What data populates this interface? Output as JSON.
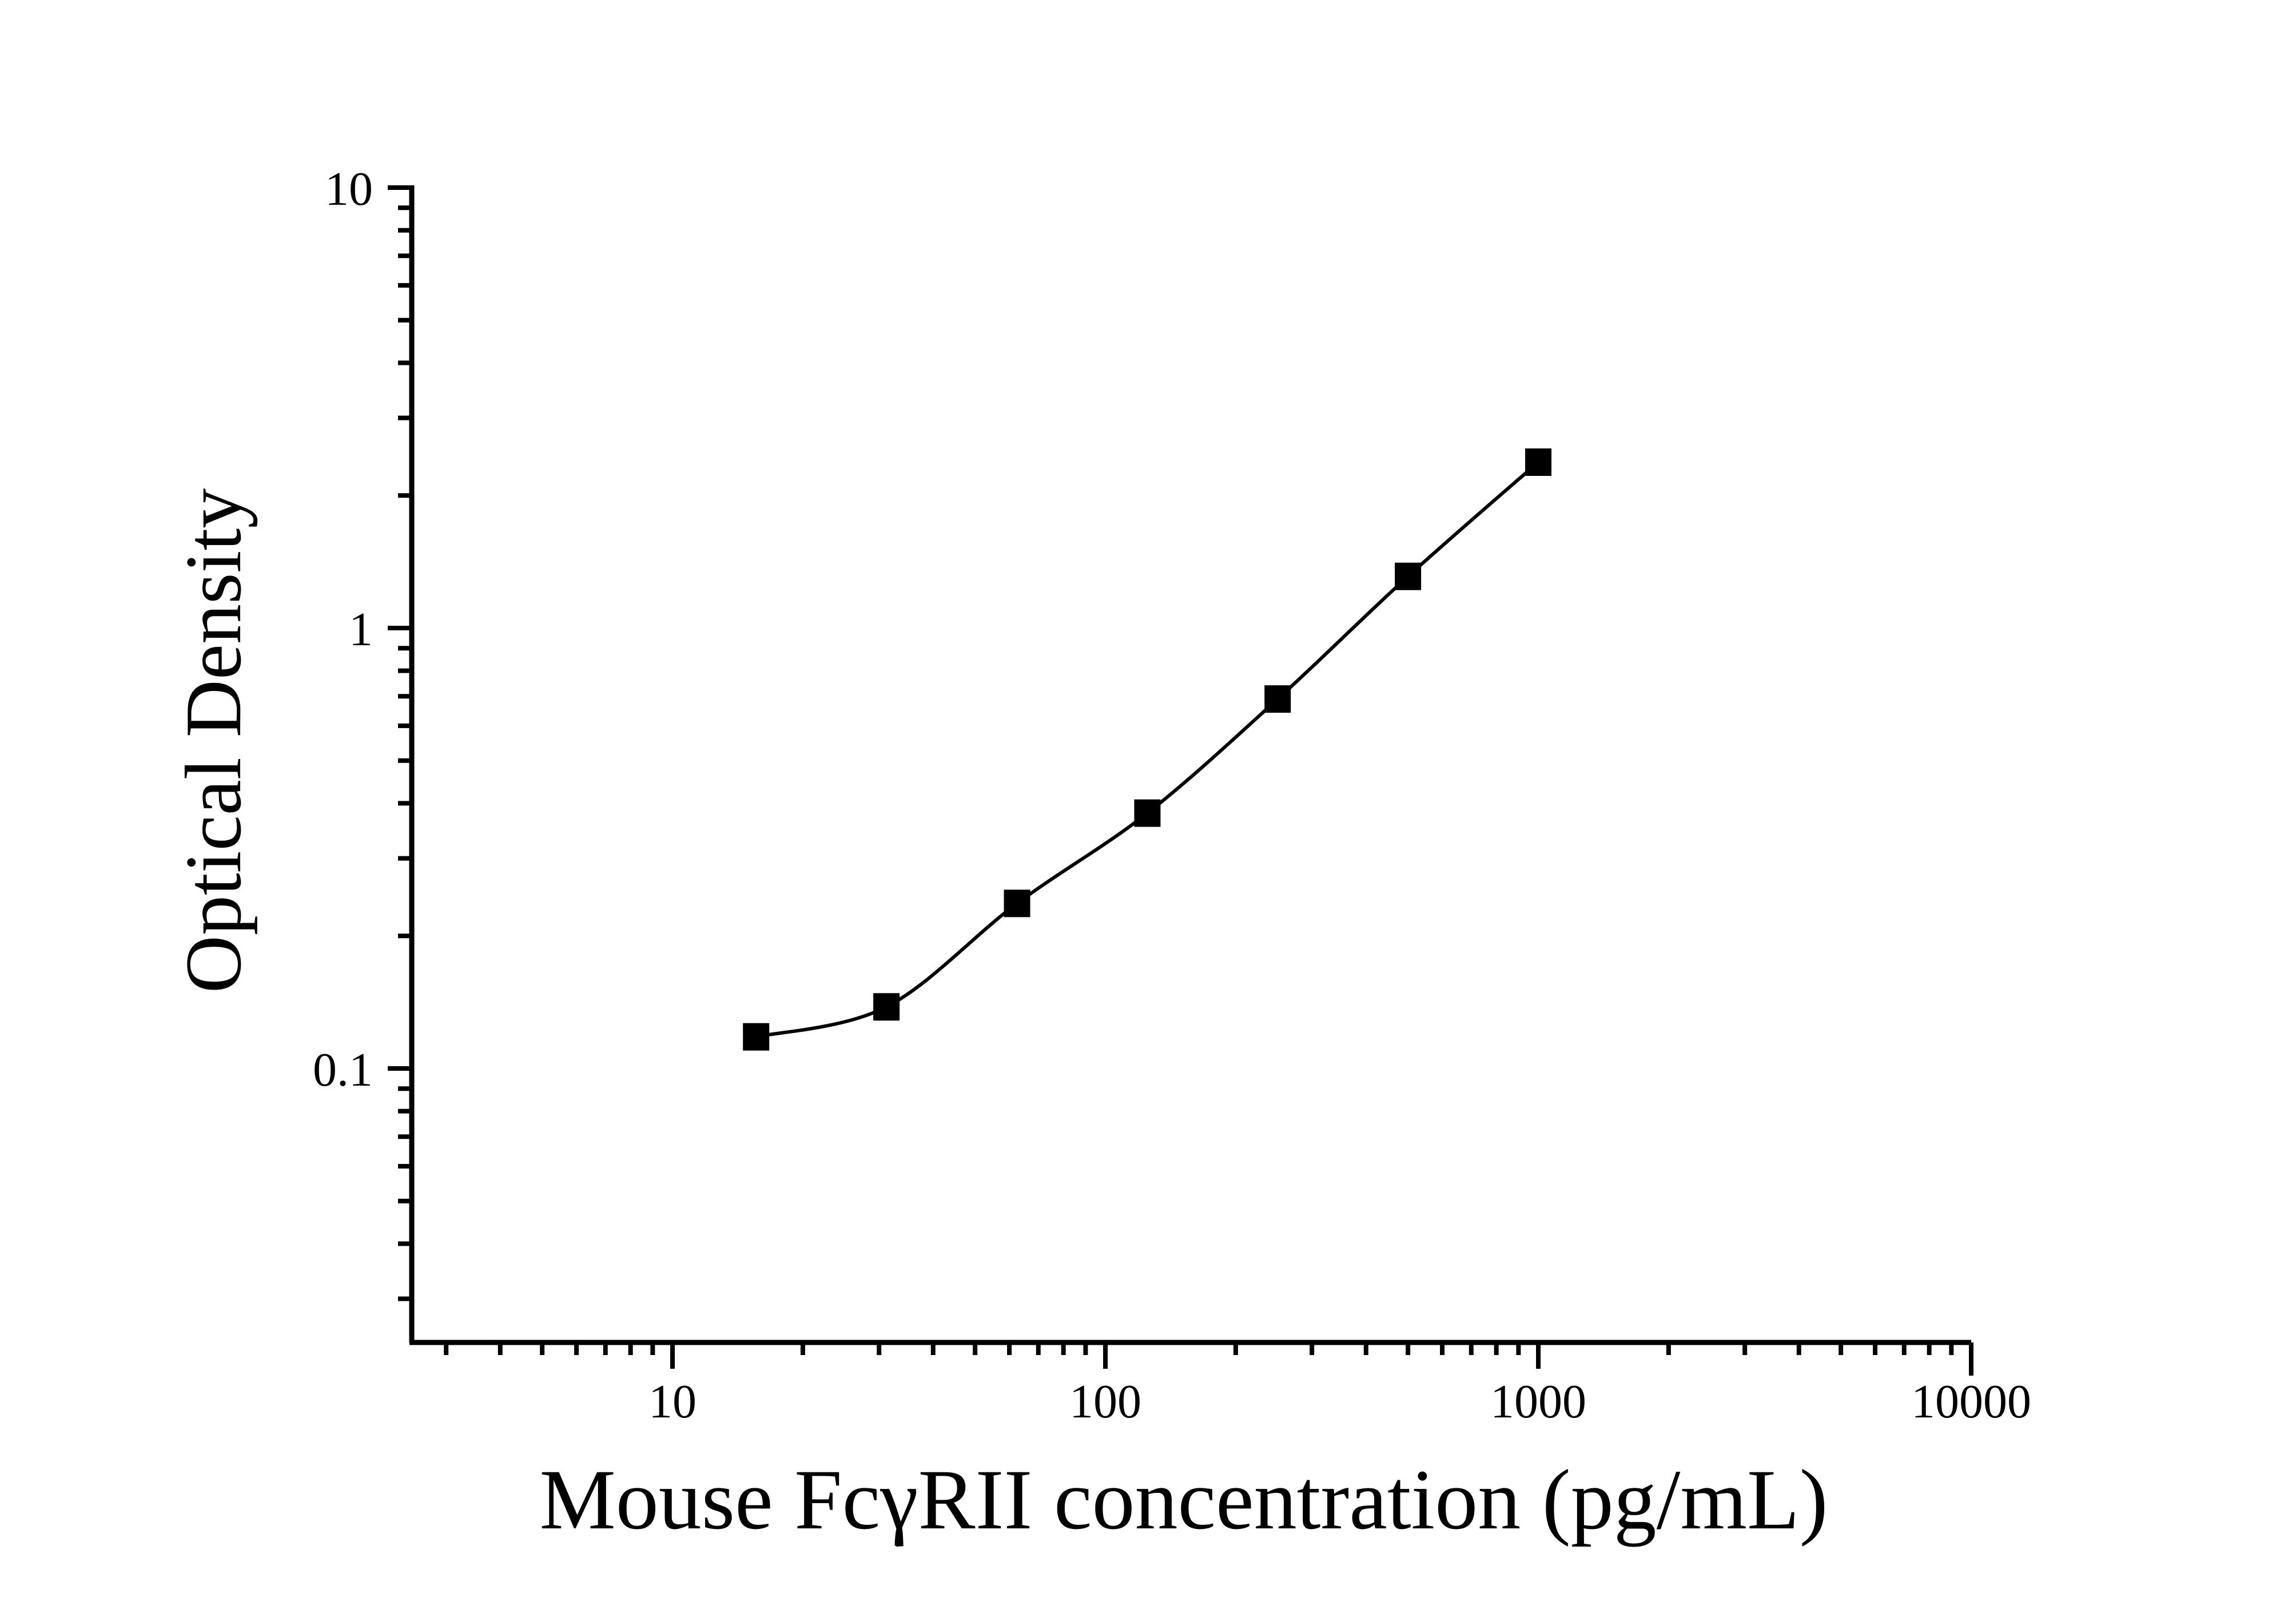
{
  "figure": {
    "background_color": "#ffffff",
    "foreground_color": "#000000",
    "marker_style": "filled-square"
  },
  "chart_data": {
    "type": "scatter",
    "subtype": "log-log standard curve with fitted line",
    "title": "",
    "xlabel": "Mouse FcγRII concentration (pg/mL)",
    "ylabel": "Optical Density",
    "x_scale": "log",
    "y_scale": "log",
    "x_range": [
      2.5,
      10000
    ],
    "y_range": [
      0.024,
      10
    ],
    "x_tick_values": [
      10,
      100,
      1000,
      10000
    ],
    "x_tick_labels": [
      "10",
      "100",
      "1000",
      "10000"
    ],
    "y_tick_values": [
      10,
      1,
      0.1
    ],
    "y_tick_labels": [
      "10",
      "1",
      "0.1"
    ],
    "grid": false,
    "legend": false,
    "series": [
      {
        "name": "standard-curve",
        "marker": "filled-square",
        "marker_color": "#000000",
        "line_color": "#000000",
        "x": [
          15.6,
          31.2,
          62.5,
          125,
          250,
          500,
          1000
        ],
        "y": [
          0.118,
          0.138,
          0.237,
          0.38,
          0.69,
          1.31,
          2.38
        ]
      }
    ]
  }
}
